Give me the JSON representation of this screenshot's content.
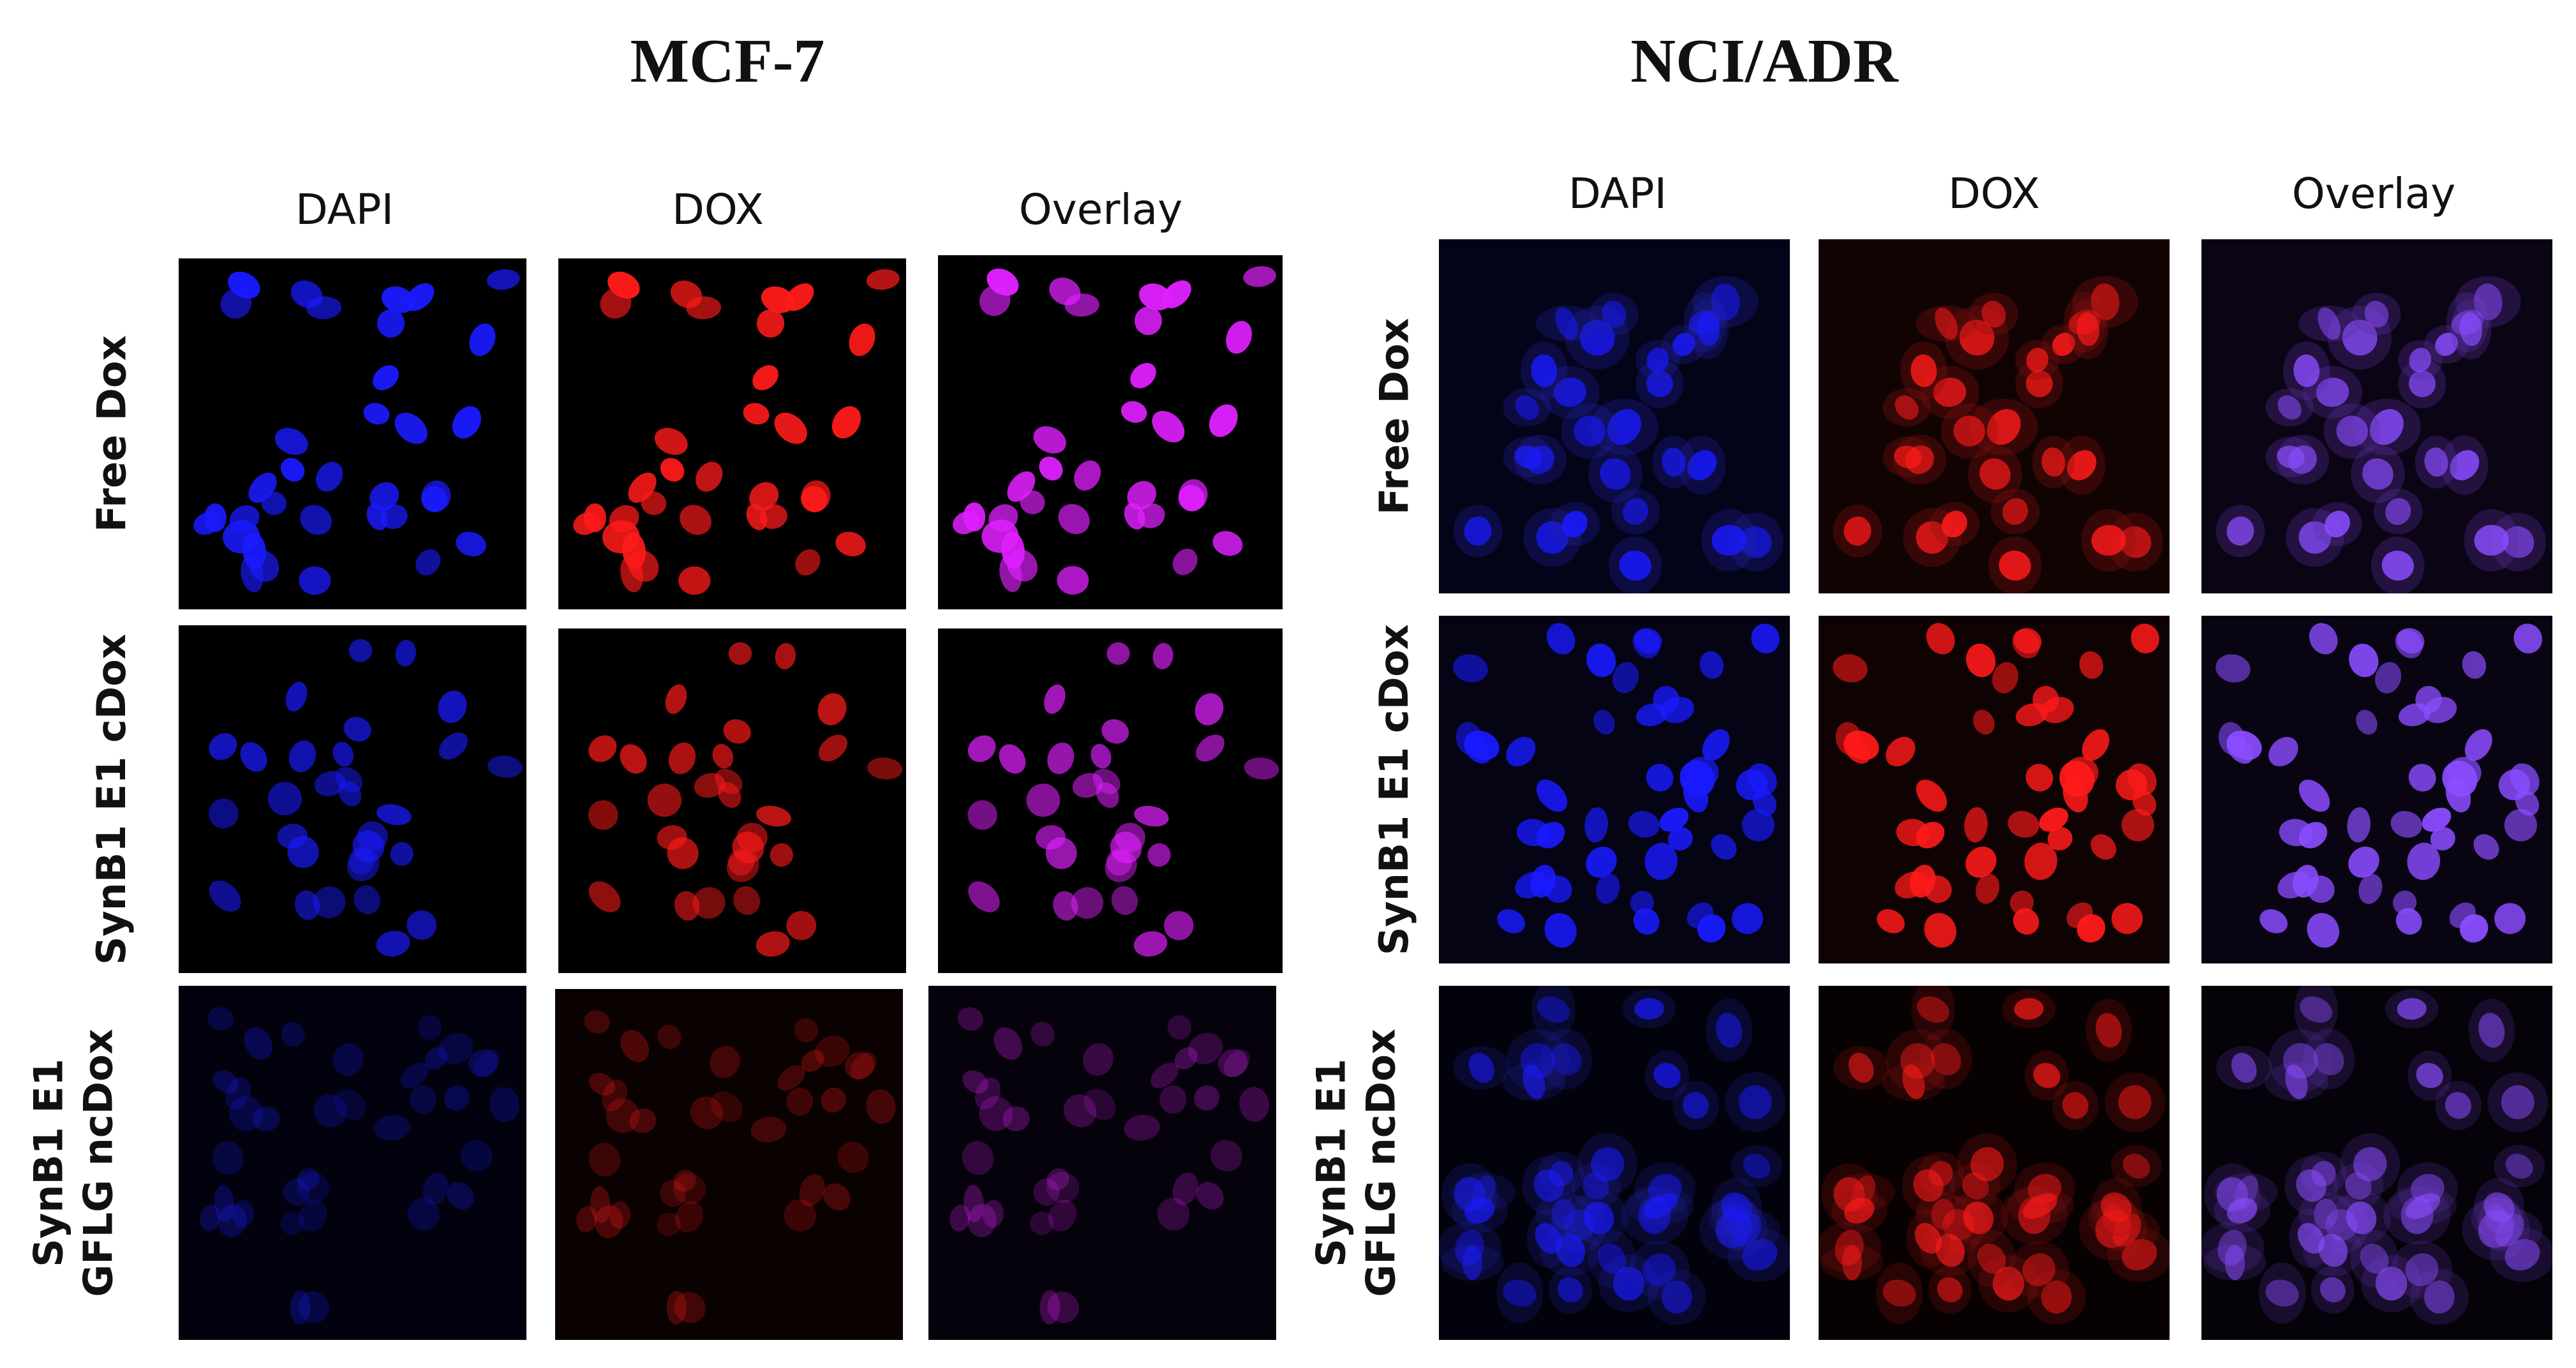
{
  "figure": {
    "groups": [
      {
        "title": "MCF-7",
        "columns": [
          "DAPI",
          "DOX",
          "Overlay"
        ],
        "rows": [
          {
            "label_lines": [
              "Free Dox"
            ]
          },
          {
            "label_lines": [
              "SynB1 E1 cDox"
            ]
          },
          {
            "label_lines": [
              "SynB1 E1",
              "GFLG ncDox"
            ]
          }
        ]
      },
      {
        "title": "NCI/ADR",
        "columns": [
          "DAPI",
          "DOX",
          "Overlay"
        ],
        "rows": [
          {
            "label_lines": [
              "Free Dox"
            ]
          },
          {
            "label_lines": [
              "SynB1 E1 cDox"
            ]
          },
          {
            "label_lines": [
              "SynB1 E1",
              "GFLG ncDox"
            ]
          }
        ]
      }
    ],
    "channel_colors": {
      "dapi": "#1a1aff",
      "dox": "#ff1a1a",
      "overlay_bright": "#e020ff",
      "overlay_purple": "#8a4cff",
      "background": "#000000"
    }
  }
}
